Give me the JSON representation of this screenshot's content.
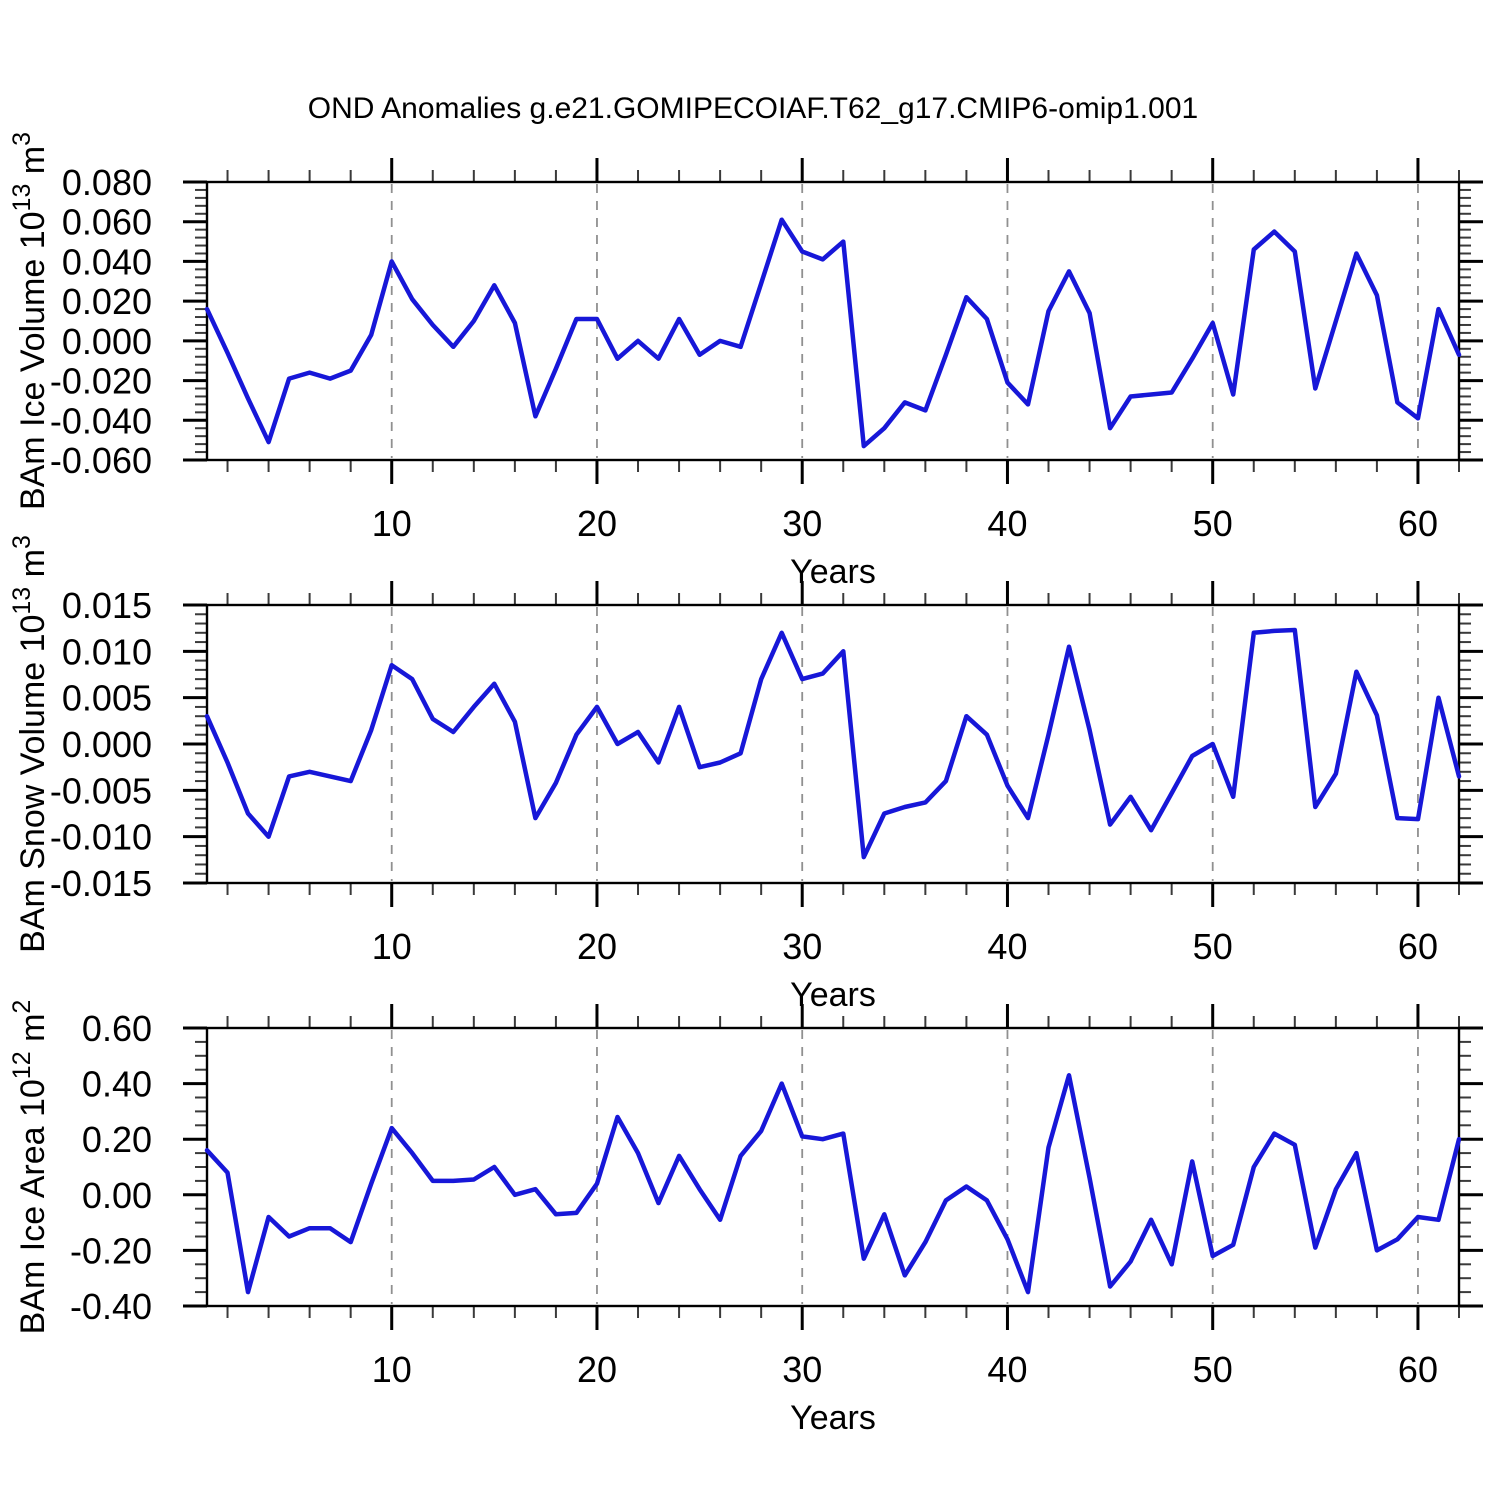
{
  "title": "OND Anomalies g.e21.GOMIPECOIAF.T62_g17.CMIP6-omip1.001",
  "chart_data": {
    "type": "line",
    "title": "OND Anomalies g.e21.GOMIPECOIAF.T62_g17.CMIP6-omip1.001",
    "x_label": "Years",
    "x_range": [
      1,
      62
    ],
    "x_major_ticks": [
      10,
      20,
      30,
      40,
      50,
      60
    ],
    "x_minor_tick_interval": 2,
    "grid": {
      "vertical_dashed_at": [
        10,
        20,
        30,
        40,
        50,
        60
      ]
    },
    "legend": "none",
    "line_color": "#1717d8",
    "grid_color": "#909090",
    "x": [
      1,
      2,
      3,
      4,
      5,
      6,
      7,
      8,
      9,
      10,
      11,
      12,
      13,
      14,
      15,
      16,
      17,
      18,
      19,
      20,
      21,
      22,
      23,
      24,
      25,
      26,
      27,
      28,
      29,
      30,
      31,
      32,
      33,
      34,
      35,
      36,
      37,
      38,
      39,
      40,
      41,
      42,
      43,
      44,
      45,
      46,
      47,
      48,
      49,
      50,
      51,
      52,
      53,
      54,
      55,
      56,
      57,
      58,
      59,
      60,
      61,
      62
    ],
    "panels": [
      {
        "id": "ice-volume",
        "ylabel_text": "BAm Ice Volume 10^13 m^3",
        "ylabel_parts": [
          "BAm Ice Volume 10",
          "13",
          " m",
          "3"
        ],
        "ylim": [
          -0.06,
          0.08
        ],
        "ytick_step": 0.02,
        "ytick_labels": [
          "0.080",
          "0.060",
          "0.040",
          "0.020",
          "0.000",
          "-0.020",
          "-0.040",
          "-0.060"
        ],
        "y_minor_tick_interval": 0.004,
        "values": [
          0.016,
          -0.006,
          -0.029,
          -0.051,
          -0.019,
          -0.016,
          -0.019,
          -0.015,
          0.003,
          0.04,
          0.021,
          0.008,
          -0.003,
          0.01,
          0.028,
          0.009,
          -0.038,
          -0.014,
          0.011,
          0.011,
          -0.009,
          0.0,
          -0.009,
          0.011,
          -0.007,
          0.0,
          -0.003,
          0.029,
          0.061,
          0.045,
          0.041,
          0.05,
          -0.053,
          -0.044,
          -0.031,
          -0.035,
          -0.007,
          0.022,
          0.011,
          -0.021,
          -0.032,
          0.015,
          0.035,
          0.014,
          -0.044,
          -0.028,
          -0.027,
          -0.026,
          -0.009,
          0.009,
          -0.027,
          0.046,
          0.055,
          0.045,
          -0.024,
          0.01,
          0.044,
          0.023,
          -0.031,
          -0.039,
          0.016,
          -0.007
        ]
      },
      {
        "id": "snow-volume",
        "ylabel_text": "BAm Snow Volume 10^13 m^3",
        "ylabel_parts": [
          "BAm Snow Volume 10",
          "13",
          " m",
          "3"
        ],
        "ylim": [
          -0.015,
          0.015
        ],
        "ytick_step": 0.005,
        "ytick_labels": [
          "0.015",
          "0.010",
          "0.005",
          "0.000",
          "-0.005",
          "-0.010",
          "-0.015"
        ],
        "y_minor_tick_interval": 0.001,
        "values": [
          0.003,
          -0.002,
          -0.0075,
          -0.01,
          -0.0035,
          -0.003,
          -0.0035,
          -0.004,
          0.0015,
          0.0085,
          0.007,
          0.0027,
          0.0013,
          0.004,
          0.0065,
          0.0024,
          -0.008,
          -0.0042,
          0.001,
          0.004,
          0.0,
          0.0013,
          -0.002,
          0.004,
          -0.0025,
          -0.002,
          -0.001,
          0.007,
          0.012,
          0.007,
          0.0076,
          0.01,
          -0.0122,
          -0.0075,
          -0.0068,
          -0.0063,
          -0.004,
          0.003,
          0.001,
          -0.0045,
          -0.008,
          0.001,
          0.0105,
          0.0015,
          -0.0087,
          -0.0057,
          -0.0093,
          -0.0053,
          -0.0013,
          0.0,
          -0.0057,
          0.012,
          0.0122,
          0.0123,
          -0.0068,
          -0.0032,
          0.0078,
          0.0031,
          -0.008,
          -0.0081,
          0.005,
          -0.0035
        ]
      },
      {
        "id": "ice-area",
        "ylabel_text": "BAm Ice Area 10^12 m^2",
        "ylabel_parts": [
          "BAm Ice Area 10",
          "12",
          " m",
          "2"
        ],
        "ylim": [
          -0.4,
          0.6
        ],
        "ytick_step": 0.2,
        "ytick_labels": [
          "0.60",
          "0.40",
          "0.20",
          "0.00",
          "-0.20",
          "-0.40"
        ],
        "y_minor_tick_interval": 0.05,
        "values": [
          0.16,
          0.08,
          -0.35,
          -0.08,
          -0.15,
          -0.12,
          -0.12,
          -0.17,
          0.04,
          0.24,
          0.15,
          0.05,
          0.05,
          0.055,
          0.1,
          0.0,
          0.02,
          -0.07,
          -0.065,
          0.04,
          0.28,
          0.15,
          -0.03,
          0.14,
          0.02,
          -0.09,
          0.14,
          0.23,
          0.4,
          0.21,
          0.2,
          0.22,
          -0.23,
          -0.07,
          -0.29,
          -0.17,
          -0.02,
          0.03,
          -0.02,
          -0.16,
          -0.35,
          0.17,
          0.43,
          0.06,
          -0.33,
          -0.24,
          -0.09,
          -0.25,
          0.12,
          -0.22,
          -0.18,
          0.1,
          0.22,
          0.18,
          -0.19,
          0.02,
          0.15,
          -0.2,
          -0.16,
          -0.08,
          -0.09,
          0.2
        ]
      }
    ]
  }
}
